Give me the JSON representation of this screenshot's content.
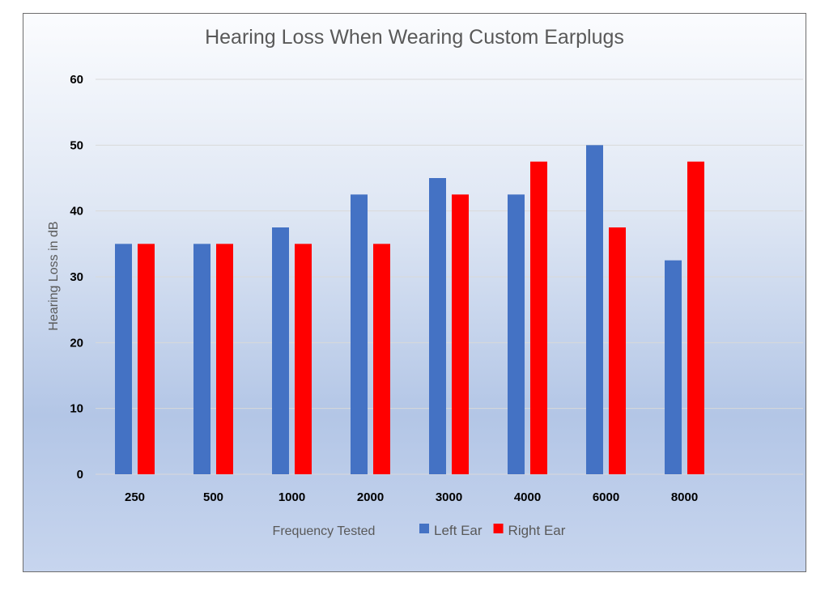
{
  "chart_data": {
    "type": "bar",
    "title": "Hearing Loss When Wearing Custom Earplugs",
    "xlabel": "Frequency Tested",
    "ylabel": "Hearing Loss in dB",
    "categories": [
      "250",
      "500",
      "1000",
      "2000",
      "3000",
      "4000",
      "6000",
      "8000"
    ],
    "series": [
      {
        "name": "Left Ear",
        "color": "#4472c4",
        "values": [
          35,
          35,
          37.5,
          42.5,
          45,
          42.5,
          50,
          32.5
        ]
      },
      {
        "name": "Right Ear",
        "color": "#ff0000",
        "values": [
          35,
          35,
          35,
          35,
          42.5,
          47.5,
          37.5,
          47.5
        ]
      }
    ],
    "ylim": [
      0,
      60
    ],
    "yticks": [
      "0",
      "10",
      "20",
      "30",
      "40",
      "50",
      "60"
    ],
    "grid": true,
    "legend_position": "bottom"
  }
}
